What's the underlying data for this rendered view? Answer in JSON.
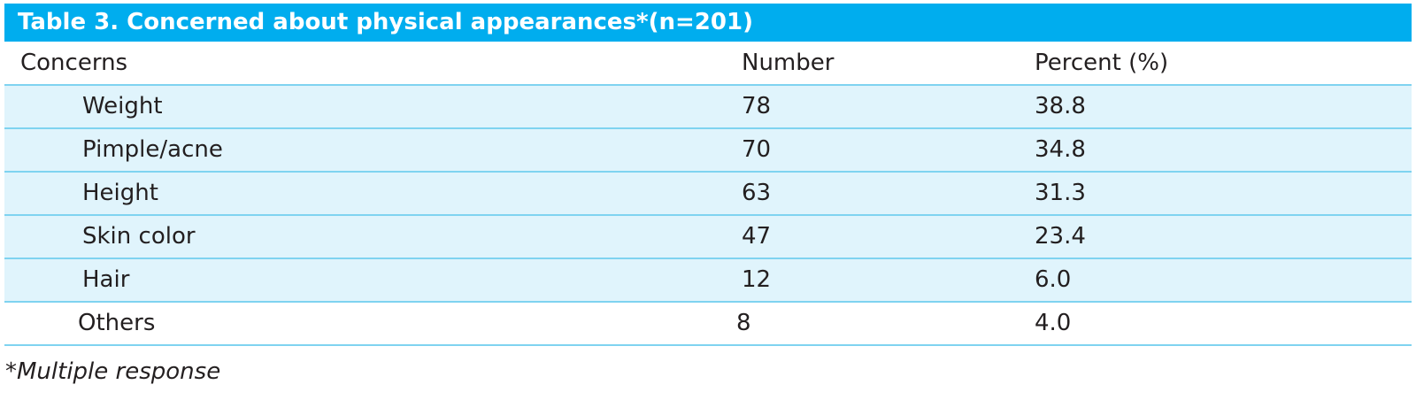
{
  "table": {
    "title": "Table 3. Concerned about physical appearances*(n=201)",
    "headers": {
      "concerns": "Concerns",
      "number": "Number",
      "percent": "Percent (%)"
    },
    "rows": [
      {
        "concern": "Weight",
        "number": "78",
        "percent": "38.8"
      },
      {
        "concern": "Pimple/acne",
        "number": "70",
        "percent": "34.8"
      },
      {
        "concern": "Height",
        "number": "63",
        "percent": "31.3"
      },
      {
        "concern": "Skin color",
        "number": "47",
        "percent": "23.4"
      },
      {
        "concern": "Hair",
        "number": "12",
        "percent": "6.0"
      },
      {
        "concern": "Others",
        "number": "8",
        "percent": "4.0"
      }
    ],
    "footnote": "*Multiple response",
    "colors": {
      "title_bar": "#00adee",
      "row_shade": "#e0f4fc",
      "rule": "#7fd3f0"
    }
  }
}
